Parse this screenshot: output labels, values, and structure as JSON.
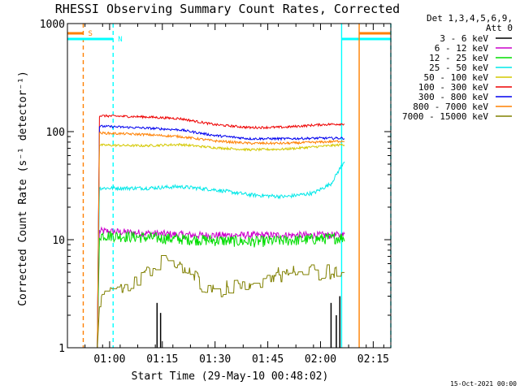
{
  "colors": {
    "background": "#ffffff",
    "axis": "#000000",
    "night_marker": "#00ffff",
    "saa_marker": "#ff8000"
  },
  "chart_data": {
    "type": "line",
    "title": "RHESSI Observing Summary Count Rates, Corrected",
    "xlabel": "Start Time (29-May-10 00:48:02)",
    "ylabel": "Corrected Count Rate (s⁻¹ detector⁻¹)",
    "footer": "15-Oct-2021 00:00",
    "y_scale": "log",
    "ylim": [
      1,
      1000
    ],
    "xlim_minutes": [
      48.0,
      140.0
    ],
    "x_ticks": [
      {
        "minute": 60,
        "label": "01:00"
      },
      {
        "minute": 75,
        "label": "01:15"
      },
      {
        "minute": 90,
        "label": "01:30"
      },
      {
        "minute": 105,
        "label": "01:45"
      },
      {
        "minute": 120,
        "label": "02:00"
      },
      {
        "minute": 135,
        "label": "02:15"
      }
    ],
    "y_ticks": [
      {
        "value": 1,
        "label": "1"
      },
      {
        "value": 10,
        "label": "10"
      },
      {
        "value": 100,
        "label": "100"
      },
      {
        "value": 1000,
        "label": "1000"
      }
    ],
    "legend": {
      "position": "right",
      "header": [
        "Det 1,3,4,5,6,9,",
        "Att 0"
      ]
    },
    "data_span_minutes": [
      56.5,
      127.0
    ],
    "series": [
      {
        "name": "3 - 6 keV",
        "color": "#000000",
        "pattern": "spikes",
        "spikes": [
          [
            73.5,
            2.6
          ],
          [
            74.5,
            2.1
          ],
          [
            123.0,
            2.6
          ],
          [
            124.5,
            2.0
          ],
          [
            125.5,
            3.0
          ]
        ]
      },
      {
        "name": "6 - 12 keV",
        "color": "#cc00cc",
        "pattern": "noisy",
        "points": [
          [
            58,
            12
          ],
          [
            70,
            11.5
          ],
          [
            85,
            11
          ],
          [
            100,
            11
          ],
          [
            115,
            11
          ],
          [
            127,
            11
          ]
        ],
        "noise": 0.08
      },
      {
        "name": "12 - 25 keV",
        "color": "#00dd00",
        "pattern": "noisy",
        "points": [
          [
            58,
            11
          ],
          [
            70,
            10.5
          ],
          [
            85,
            10
          ],
          [
            100,
            9.6
          ],
          [
            115,
            10
          ],
          [
            127,
            10.5
          ]
        ],
        "noise": 0.12
      },
      {
        "name": "25 - 50 keV",
        "color": "#00e8e8",
        "pattern": "noisy",
        "points": [
          [
            58,
            30
          ],
          [
            70,
            30
          ],
          [
            80,
            31
          ],
          [
            90,
            29
          ],
          [
            100,
            26
          ],
          [
            110,
            25
          ],
          [
            118,
            27
          ],
          [
            123,
            33
          ],
          [
            127,
            55
          ]
        ],
        "noise": 0.04
      },
      {
        "name": "50 - 100 keV",
        "color": "#d4c800",
        "pattern": "noisy",
        "points": [
          [
            58,
            75
          ],
          [
            70,
            74
          ],
          [
            80,
            76
          ],
          [
            90,
            71
          ],
          [
            100,
            68
          ],
          [
            110,
            69
          ],
          [
            120,
            73
          ],
          [
            127,
            76
          ]
        ],
        "noise": 0.025
      },
      {
        "name": "100 - 300 keV",
        "color": "#ee0000",
        "pattern": "noisy",
        "points": [
          [
            58,
            140
          ],
          [
            70,
            137
          ],
          [
            80,
            132
          ],
          [
            90,
            116
          ],
          [
            100,
            109
          ],
          [
            110,
            110
          ],
          [
            120,
            116
          ],
          [
            127,
            118
          ]
        ],
        "noise": 0.025
      },
      {
        "name": "300 - 800 keV",
        "color": "#0000ee",
        "pattern": "noisy",
        "points": [
          [
            58,
            112
          ],
          [
            70,
            108
          ],
          [
            80,
            104
          ],
          [
            90,
            92
          ],
          [
            100,
            86
          ],
          [
            110,
            86
          ],
          [
            120,
            87
          ],
          [
            127,
            87
          ]
        ],
        "noise": 0.025
      },
      {
        "name": "800 - 7000 keV",
        "color": "#ff8000",
        "pattern": "noisy",
        "points": [
          [
            58,
            97
          ],
          [
            70,
            94
          ],
          [
            80,
            90
          ],
          [
            90,
            82
          ],
          [
            100,
            78
          ],
          [
            110,
            78
          ],
          [
            120,
            80
          ],
          [
            127,
            82
          ]
        ],
        "noise": 0.025
      },
      {
        "name": "7000 - 15000 keV",
        "color": "#808000",
        "pattern": "steps",
        "points": [
          [
            57,
            2.8
          ],
          [
            61,
            3.2
          ],
          [
            66,
            3.6
          ],
          [
            70,
            5.0
          ],
          [
            75,
            6.2
          ],
          [
            83,
            5.0
          ],
          [
            87,
            3.6
          ],
          [
            100,
            3.6
          ],
          [
            106,
            4.8
          ],
          [
            120,
            5.0
          ],
          [
            127,
            5.0
          ]
        ],
        "noise": 0.18
      }
    ],
    "markers": [
      {
        "label": "S",
        "color": "#ff8000",
        "style": "dashed",
        "minute": 52.5,
        "bar": "left"
      },
      {
        "label": "N",
        "color": "#00ffff",
        "style": "dashed",
        "minute": 61.0,
        "bar": "left"
      },
      {
        "label": "",
        "color": "#00ffff",
        "style": "solid",
        "minute": 126.0,
        "bar": "right"
      },
      {
        "label": "",
        "color": "#ff8000",
        "style": "solid",
        "minute": 131.0,
        "bar": "right"
      },
      {
        "label": "",
        "color": "#00ffff",
        "style": "dashed",
        "minute": 140.0,
        "bar": "none"
      }
    ]
  }
}
